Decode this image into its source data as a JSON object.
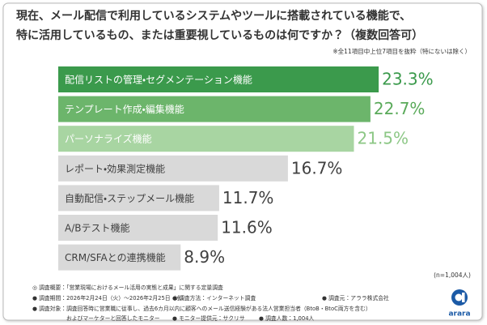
{
  "chart_data": {
    "type": "bar",
    "orientation": "horizontal",
    "title_lines": [
      "現在、メール配信で利用しているシステムやツールに搭載されている機能で、",
      "特に活用しているもの、または重要視しているものは何ですか？（複数回答可）"
    ],
    "note": "※全11項目中上位7項目を抜粋（特にないは除く）",
    "categories": [
      "配信リストの管理・セグメンテーション機能",
      "テンプレート作成・編集機能",
      "パーソナライズ機能",
      "レポート・効果測定機能",
      "自動配信・ステップメール機能",
      "A/Bテスト機能",
      "CRM/SFAとの連携機能"
    ],
    "values": [
      23.3,
      22.7,
      21.5,
      16.7,
      11.7,
      11.6,
      8.9
    ],
    "value_labels": [
      "23.3%",
      "22.7%",
      "21.5%",
      "16.7%",
      "11.7%",
      "11.6%",
      "8.9%"
    ],
    "colors": [
      "#3b9a4c",
      "#6cb56b",
      "#a8d5a2",
      "#d9d9d9",
      "#d9d9d9",
      "#d9d9d9",
      "#d9d9d9"
    ],
    "value_label_colors": [
      "#3b9a4c",
      "#5aaa5a",
      "#8cc785",
      "#404040",
      "#404040",
      "#404040",
      "#404040"
    ],
    "category_label_colors": [
      "#ffffff",
      "#ffffff",
      "#ffffff",
      "#404040",
      "#404040",
      "#404040",
      "#404040"
    ],
    "sample_size": "(n=1,004人)",
    "footnotes": [
      [
        "◎ 調査概要：「営業現場におけるメール活用の実態と成果」に関する定量調査"
      ],
      [
        "● 調査期間：2026年2月24日（火）～2026年2月25日（水）",
        "● 調査方法：インターネット調査",
        "● 調査元：アララ株式会社"
      ],
      [
        "● 調査対象：調査回答時に営業職に従事し、過去6カ月以内に顧客へのメール送信経験がある法人営業担当者（BtoB・BtoC両方を含む）"
      ],
      [
        "およびマーケターと回答したモニター",
        "● モニター提供元：サクリサ",
        "● 調査人数：1,004人"
      ]
    ],
    "logo": "arara"
  }
}
